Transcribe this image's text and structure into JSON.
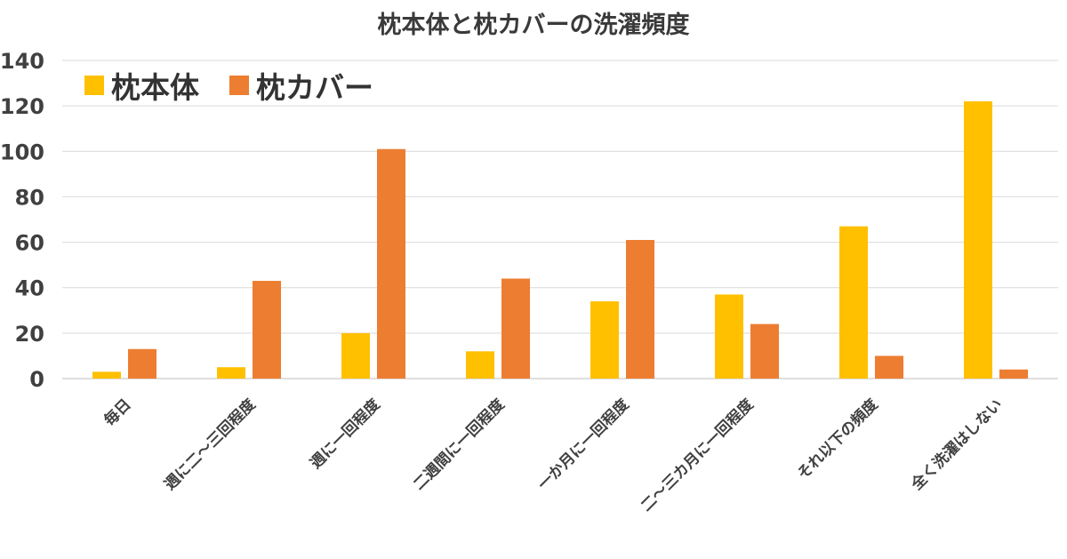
{
  "chart_data": {
    "type": "bar",
    "title": "枕本体と枕カバーの洗濯頻度",
    "categories": [
      "毎日",
      "週に二～三回程度",
      "週に一回程度",
      "二週間に一回程度",
      "一か月に一回程度",
      "二～三カ月に一回程度",
      "それ以下の頻度",
      "全く洗濯はしない"
    ],
    "series": [
      {
        "name": "枕本体",
        "color": "#FFC000",
        "values": [
          3,
          5,
          20,
          12,
          34,
          37,
          67,
          122
        ]
      },
      {
        "name": "枕カバー",
        "color": "#ED7D31",
        "values": [
          13,
          43,
          101,
          44,
          61,
          24,
          10,
          4
        ]
      }
    ],
    "ylim": [
      0,
      140
    ],
    "yticks": [
      0,
      20,
      40,
      60,
      80,
      100,
      120,
      140
    ],
    "grid": true,
    "legend_position": "top-left"
  }
}
